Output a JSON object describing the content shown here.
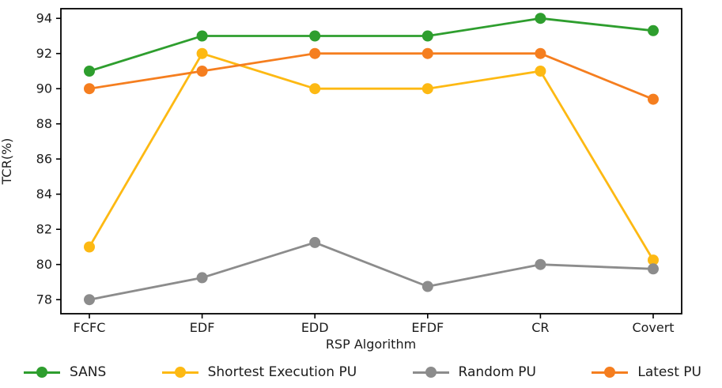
{
  "figure": {
    "background": "#ffffff",
    "text_color": "#1c1c1c"
  },
  "chart_data": {
    "type": "line",
    "title": "",
    "xlabel": "RSP Algorithm",
    "ylabel": "TCR(%)",
    "categories": [
      "FCFC",
      "EDF",
      "EDD",
      "EFDF",
      "CR",
      "Covert"
    ],
    "series": [
      {
        "name": "SANS",
        "color": "#2e9e2e",
        "marker": "circle",
        "values": [
          91,
          93,
          93,
          93,
          94,
          93.3
        ]
      },
      {
        "name": "Shortest Execution PU",
        "color": "#fdb913",
        "marker": "circle",
        "values": [
          81,
          92,
          90,
          90,
          91,
          80.25
        ]
      },
      {
        "name": "Random PU",
        "color": "#8c8c8c",
        "marker": "circle",
        "values": [
          78,
          79.25,
          81.25,
          78.75,
          80,
          79.75
        ]
      },
      {
        "name": "Latest PU",
        "color": "#f57e1f",
        "marker": "circle",
        "values": [
          90,
          91,
          92,
          92,
          92,
          89.4
        ]
      }
    ],
    "yticks": [
      78,
      80,
      82,
      84,
      86,
      88,
      90,
      92,
      94
    ],
    "ylim": [
      77.2,
      94.55
    ],
    "grid": false,
    "legend_position": "bottom"
  }
}
